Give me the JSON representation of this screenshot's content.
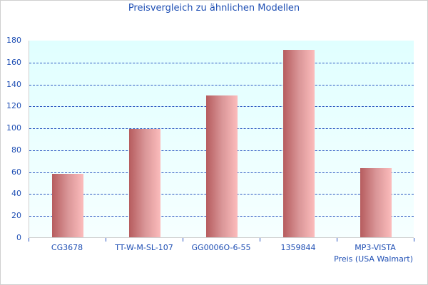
{
  "chart_data": {
    "type": "bar",
    "title": "Preisvergleich zu ähnlichen Modellen",
    "categories": [
      "CG3678",
      "TT-W-M-SL-107",
      "GG0006O-6-55",
      "1359844",
      "MP3-VISTA"
    ],
    "values": [
      58,
      99,
      129,
      171,
      63
    ],
    "xlabel": "Preis (USA Walmart)",
    "ylabel": "",
    "ylim": [
      0,
      180
    ],
    "yticks": [
      "0",
      "20",
      "40",
      "60",
      "80",
      "100",
      "120",
      "140",
      "160",
      "180"
    ],
    "grid": true,
    "colors": {
      "bar_dark": "#b65c5e",
      "bar_light": "#fcbcbc",
      "text": "#1f4fb4",
      "grid": "#2a55c0",
      "plot_bg": "#e0ffff"
    }
  }
}
